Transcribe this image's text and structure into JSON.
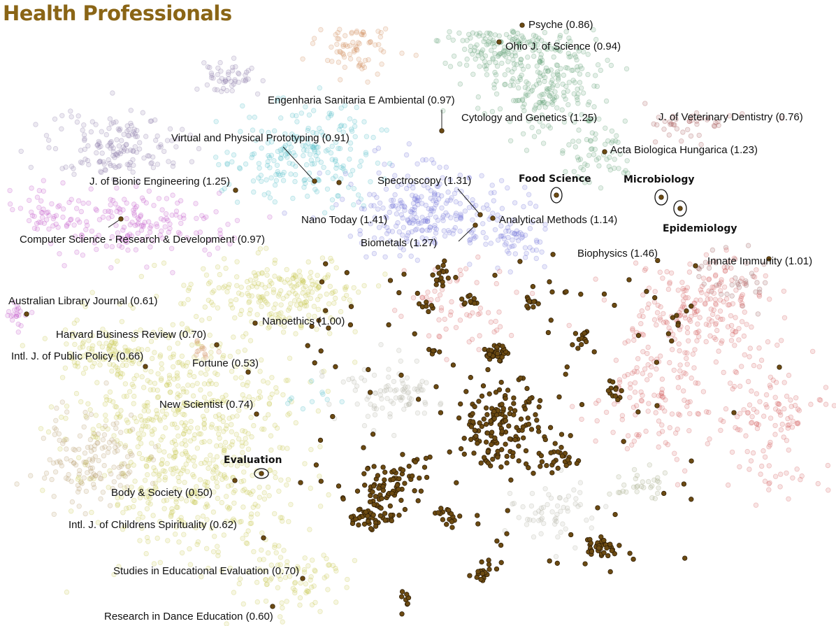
{
  "chart_data": {
    "type": "scatter",
    "title": "Health Professionals",
    "title_color": "#8a6516",
    "highlight_color": "#6b4a12",
    "field_labels": [
      {
        "text": "Food Science"
      },
      {
        "text": "Microbiology"
      },
      {
        "text": "Epidemiology"
      },
      {
        "text": "Evaluation"
      }
    ],
    "journal_labels": [
      {
        "text": "Psyche (0.86)"
      },
      {
        "text": "Ohio J. of Science (0.94)"
      },
      {
        "text": "Engenharia Sanitaria E Ambiental (0.97)"
      },
      {
        "text": "Cytology and Genetics (1.25)"
      },
      {
        "text": "J. of Veterinary Dentistry (0.76)"
      },
      {
        "text": "Virtual and Physical Prototyping (0.91)"
      },
      {
        "text": "Acta Biologica Hungarica (1.23)"
      },
      {
        "text": "J. of Bionic Engineering (1.25)"
      },
      {
        "text": "Spectroscopy (1.31)"
      },
      {
        "text": "Computer Science - Research & Development (0.97)"
      },
      {
        "text": "Nano Today (1.41)"
      },
      {
        "text": "Analytical Methods (1.14)"
      },
      {
        "text": "Biometals (1.27)"
      },
      {
        "text": "Biophysics (1.46)"
      },
      {
        "text": "Innate Immunity (1.01)"
      },
      {
        "text": "Australian Library Journal (0.61)"
      },
      {
        "text": "Nanoethics (1.00)"
      },
      {
        "text": "Harvard Business Review (0.70)"
      },
      {
        "text": "Intl. J. of Public Policy (0.66)"
      },
      {
        "text": "Fortune (0.53)"
      },
      {
        "text": "New Scientist (0.74)"
      },
      {
        "text": "Body & Society (0.50)"
      },
      {
        "text": "Intl. J. of Childrens Spirituality (0.62)"
      },
      {
        "text": "Studies in Educational Evaluation (0.70)"
      },
      {
        "text": "Research in Dance Education (0.60)"
      }
    ]
  }
}
